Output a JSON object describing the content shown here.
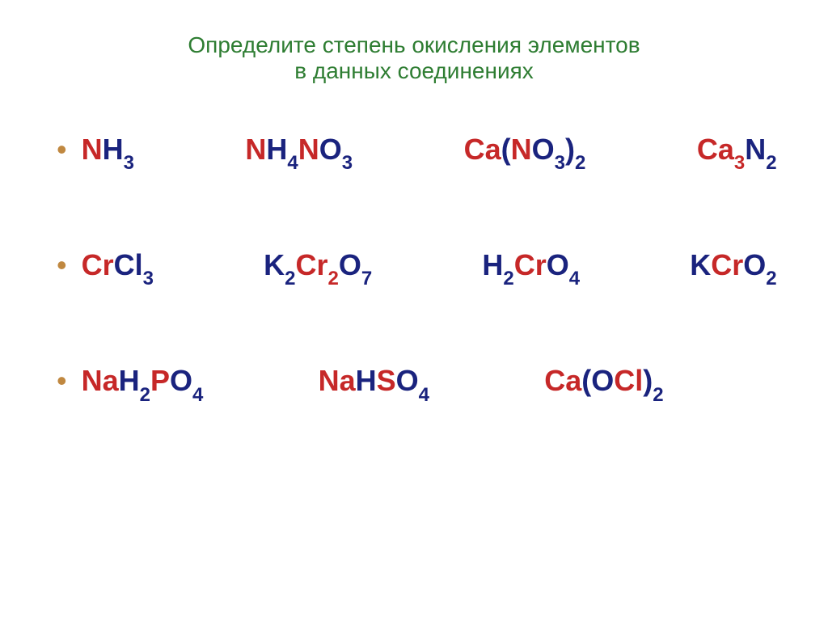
{
  "title": {
    "line1": "Определите степень окисления элементов",
    "line2": "в данных соединениях",
    "color": "#2e7d32",
    "fontsize": 28
  },
  "bullet_color": "#c08840",
  "colors": {
    "red": "#c62828",
    "blue": "#1a237e",
    "black": "#000000"
  },
  "rows": [
    {
      "formulas": [
        {
          "parts": [
            {
              "text": "N",
              "color": "red"
            },
            {
              "text": "H",
              "color": "blue"
            },
            {
              "text": "3",
              "sub": true,
              "color": "blue"
            }
          ]
        },
        {
          "parts": [
            {
              "text": "N",
              "color": "red"
            },
            {
              "text": "H",
              "color": "blue"
            },
            {
              "text": "4",
              "sub": true,
              "color": "blue"
            },
            {
              "text": "N",
              "color": "red"
            },
            {
              "text": "O",
              "color": "blue"
            },
            {
              "text": "3",
              "sub": true,
              "color": "blue"
            }
          ]
        },
        {
          "parts": [
            {
              "text": "C",
              "color": "red"
            },
            {
              "text": "A",
              "color": "red",
              "lowercase": true
            },
            {
              "text": "(",
              "color": "blue"
            },
            {
              "text": "N",
              "color": "red"
            },
            {
              "text": "O",
              "color": "blue"
            },
            {
              "text": "3",
              "sub": true,
              "color": "blue"
            },
            {
              "text": ")",
              "color": "blue"
            },
            {
              "text": "2",
              "sub": true,
              "color": "blue"
            }
          ]
        },
        {
          "parts": [
            {
              "text": "C",
              "color": "red"
            },
            {
              "text": "A",
              "color": "red",
              "lowercase": true
            },
            {
              "text": "3",
              "sub": true,
              "color": "red"
            },
            {
              "text": "N",
              "color": "blue"
            },
            {
              "text": "2",
              "sub": true,
              "color": "blue"
            }
          ]
        }
      ]
    },
    {
      "formulas": [
        {
          "parts": [
            {
              "text": "C",
              "color": "red"
            },
            {
              "text": "R",
              "color": "red",
              "lowercase": true
            },
            {
              "text": "C",
              "color": "blue"
            },
            {
              "text": "L",
              "color": "blue",
              "lowercase": true
            },
            {
              "text": "3",
              "sub": true,
              "color": "blue"
            }
          ]
        },
        {
          "parts": [
            {
              "text": "K",
              "color": "blue"
            },
            {
              "text": "2",
              "sub": true,
              "color": "blue"
            },
            {
              "text": "C",
              "color": "red"
            },
            {
              "text": "R",
              "color": "red",
              "lowercase": true
            },
            {
              "text": "2",
              "sub": true,
              "color": "red"
            },
            {
              "text": "O",
              "color": "blue"
            },
            {
              "text": "7",
              "sub": true,
              "color": "blue"
            }
          ]
        },
        {
          "parts": [
            {
              "text": "H",
              "color": "blue"
            },
            {
              "text": "2",
              "sub": true,
              "color": "blue"
            },
            {
              "text": "C",
              "color": "red"
            },
            {
              "text": "R",
              "color": "red",
              "lowercase": true
            },
            {
              "text": "O",
              "color": "blue"
            },
            {
              "text": "4",
              "sub": true,
              "color": "blue"
            }
          ]
        },
        {
          "parts": [
            {
              "text": "K",
              "color": "blue"
            },
            {
              "text": "C",
              "color": "red"
            },
            {
              "text": "R",
              "color": "red",
              "lowercase": true
            },
            {
              "text": "O",
              "color": "blue"
            },
            {
              "text": "2",
              "sub": true,
              "color": "blue"
            }
          ]
        }
      ]
    },
    {
      "formulas": [
        {
          "parts": [
            {
              "text": "N",
              "color": "red"
            },
            {
              "text": "A",
              "color": "red",
              "lowercase": true
            },
            {
              "text": "H",
              "color": "blue"
            },
            {
              "text": "2",
              "sub": true,
              "color": "blue"
            },
            {
              "text": "P",
              "color": "red"
            },
            {
              "text": "O",
              "color": "blue"
            },
            {
              "text": "4",
              "sub": true,
              "color": "blue"
            }
          ]
        },
        {
          "parts": [
            {
              "text": "N",
              "color": "red"
            },
            {
              "text": "A",
              "color": "red",
              "lowercase": true
            },
            {
              "text": "H",
              "color": "blue"
            },
            {
              "text": "S",
              "color": "red"
            },
            {
              "text": "O",
              "color": "blue"
            },
            {
              "text": "4",
              "sub": true,
              "color": "blue"
            }
          ]
        },
        {
          "parts": [
            {
              "text": "C",
              "color": "red"
            },
            {
              "text": "A",
              "color": "red",
              "lowercase": true
            },
            {
              "text": "(",
              "color": "blue"
            },
            {
              "text": "O",
              "color": "blue"
            },
            {
              "text": "C",
              "color": "red"
            },
            {
              "text": "L",
              "color": "red",
              "lowercase": true
            },
            {
              "text": ")",
              "color": "blue"
            },
            {
              "text": "2",
              "sub": true,
              "color": "blue"
            }
          ]
        }
      ],
      "spacing": "narrow"
    }
  ]
}
